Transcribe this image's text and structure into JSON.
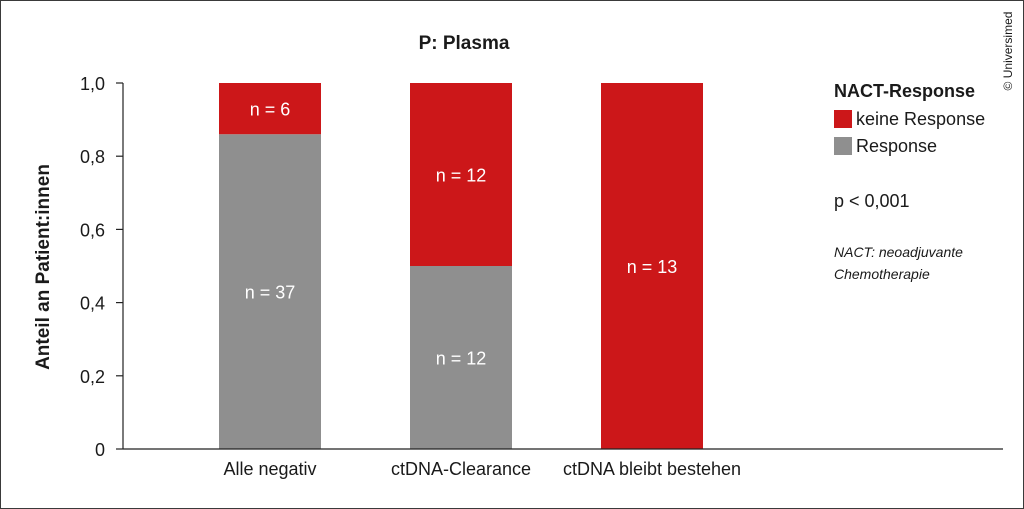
{
  "chart_data": {
    "type": "bar",
    "stacked": true,
    "title": "P: Plasma",
    "ylabel": "Anteil an Patient:innen",
    "xlabel": "",
    "ylim": [
      0,
      1
    ],
    "yticks": [
      {
        "value": 0,
        "label": "0"
      },
      {
        "value": 0.2,
        "label": "0,2"
      },
      {
        "value": 0.4,
        "label": "0,4"
      },
      {
        "value": 0.6,
        "label": "0,6"
      },
      {
        "value": 0.8,
        "label": "0,8"
      },
      {
        "value": 1.0,
        "label": "1,0"
      }
    ],
    "categories": [
      "Alle negativ",
      "ctDNA-Clearance",
      "ctDNA bleibt bestehen"
    ],
    "series": [
      {
        "name": "Response",
        "color": "#8f8f8f",
        "values": [
          0.86,
          0.5,
          0
        ],
        "labels": [
          "n = 37",
          "n = 12",
          ""
        ]
      },
      {
        "name": "keine Response",
        "color": "#cc1719",
        "values": [
          0.14,
          0.5,
          1.0
        ],
        "labels": [
          "n = 6",
          "n = 12",
          "n = 13"
        ]
      }
    ],
    "legend": {
      "title": "NACT-Response",
      "position": "right",
      "items": [
        {
          "label": "keine Response",
          "color": "#cc1719"
        },
        {
          "label": "Response",
          "color": "#8f8f8f"
        }
      ]
    },
    "annotations": {
      "pvalue": "p < 0,001",
      "footnote_line1": "NACT: neoadjuvante",
      "footnote_line2": "Chemotherapie",
      "copyright": "© Universimed"
    },
    "grid": false
  }
}
